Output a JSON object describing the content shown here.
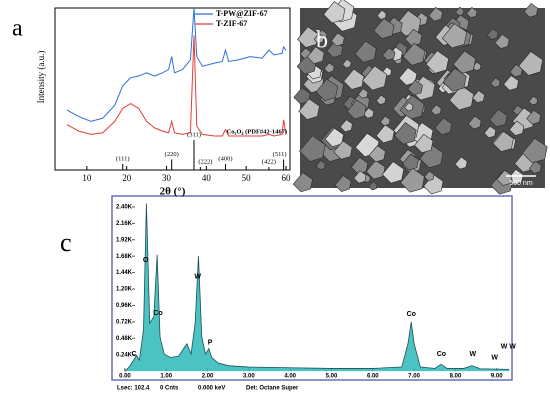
{
  "panel_labels": [
    "a",
    "b",
    "c"
  ],
  "image": {
    "scale_bar": "500 nm"
  },
  "chart_data": [
    {
      "type": "line",
      "x_label": "2θ (°)",
      "y_label": "Intensity (a.u.)",
      "x": [
        5,
        8,
        11,
        14,
        17,
        19,
        21,
        23,
        25,
        27,
        29,
        30.5,
        31.3,
        32,
        34,
        36,
        36.9,
        37.6,
        39,
        42,
        44,
        44.8,
        45.6,
        48,
        51,
        54,
        55.7,
        57,
        59,
        59.4,
        60
      ],
      "series": [
        {
          "name": "T-PW@ZIF-67",
          "color": "#2f6fd6",
          "values": [
            37,
            33,
            30,
            32,
            40,
            52,
            57,
            58,
            60,
            58,
            60,
            62,
            70,
            60,
            62,
            68,
            100,
            70,
            64,
            66,
            67,
            74,
            67,
            68,
            70,
            69,
            74,
            71,
            72,
            76,
            74
          ]
        },
        {
          "name": "T-ZIF-67",
          "color": "#e53b3b",
          "values": [
            28,
            24,
            22,
            23,
            30,
            38,
            41,
            38,
            30,
            26,
            24,
            23,
            30,
            23,
            22,
            23,
            83,
            27,
            22,
            21,
            21,
            25,
            21,
            21,
            21,
            21,
            22,
            21,
            22,
            31,
            22
          ]
        }
      ],
      "xlim": [
        2,
        61
      ],
      "ylim": [
        0,
        100
      ],
      "xticks": [
        10,
        20,
        30,
        40,
        50,
        60
      ],
      "legend": "upper right",
      "reference": {
        "label": "Co₃O₄ (PDF#42-1467)",
        "peaks": [
          {
            "label": "(111)",
            "position": 19.0,
            "intensity": 20
          },
          {
            "label": "(220)",
            "position": 31.3,
            "intensity": 35
          },
          {
            "label": "(311)",
            "position": 36.9,
            "intensity": 100
          },
          {
            "label": "(222)",
            "position": 38.5,
            "intensity": 10
          },
          {
            "label": "(400)",
            "position": 44.8,
            "intensity": 20
          },
          {
            "label": "(422)",
            "position": 55.7,
            "intensity": 10
          },
          {
            "label": "(511)",
            "position": 59.4,
            "intensity": 35
          }
        ]
      }
    },
    {
      "type": "area",
      "x": [
        0,
        0.1,
        0.2,
        0.28,
        0.35,
        0.45,
        0.52,
        0.6,
        0.7,
        0.78,
        0.85,
        0.95,
        1.1,
        1.3,
        1.5,
        1.6,
        1.7,
        1.78,
        1.86,
        1.95,
        2.03,
        2.1,
        2.25,
        2.5,
        3,
        4,
        5,
        6,
        6.7,
        6.85,
        6.93,
        7.0,
        7.15,
        7.5,
        7.65,
        7.8,
        8.2,
        8.4,
        8.6,
        9,
        9.3
      ],
      "values": [
        0,
        60,
        150,
        230,
        160,
        600,
        2450,
        700,
        800,
        1700,
        500,
        250,
        200,
        220,
        400,
        250,
        700,
        1680,
        500,
        250,
        330,
        200,
        120,
        80,
        60,
        50,
        40,
        40,
        60,
        400,
        720,
        400,
        60,
        40,
        100,
        40,
        40,
        80,
        35,
        30,
        25
      ],
      "color": "#2bb8b8",
      "xlim": [
        -0.24,
        9.32
      ],
      "ylim": [
        -100,
        2530
      ],
      "xticks": [
        {
          "value": 0,
          "label": "0.00"
        },
        {
          "value": 1,
          "label": "1.00"
        },
        {
          "value": 2,
          "label": "2.00"
        },
        {
          "value": 3,
          "label": "3.00"
        },
        {
          "value": 4,
          "label": "4.00"
        },
        {
          "value": 5,
          "label": "5.00"
        },
        {
          "value": 6,
          "label": "6.00"
        },
        {
          "value": 7,
          "label": "7.00"
        },
        {
          "value": 8,
          "label": "8.00"
        },
        {
          "value": 9,
          "label": "9.00"
        }
      ],
      "yticks": [
        {
          "value": 240,
          "label": "0.24K"
        },
        {
          "value": 480,
          "label": "0.48K"
        },
        {
          "value": 720,
          "label": "0.72K"
        },
        {
          "value": 960,
          "label": "0.96K"
        },
        {
          "value": 1200,
          "label": "1.20K"
        },
        {
          "value": 1440,
          "label": "1.44K"
        },
        {
          "value": 1680,
          "label": "1.68K"
        },
        {
          "value": 1920,
          "label": "1.92K"
        },
        {
          "value": 2160,
          "label": "2.16K"
        },
        {
          "value": 2400,
          "label": "2.40K"
        }
      ],
      "annotations": [
        {
          "text": "C",
          "x": 0.22,
          "y": 250
        },
        {
          "text": "O",
          "x": 0.5,
          "y": 1620
        },
        {
          "text": "Co",
          "x": 0.8,
          "y": 850
        },
        {
          "text": "W",
          "x": 1.76,
          "y": 1380
        },
        {
          "text": "P",
          "x": 2.06,
          "y": 420
        },
        {
          "text": "Co",
          "x": 6.93,
          "y": 830
        },
        {
          "text": "Co",
          "x": 7.66,
          "y": 250
        },
        {
          "text": "W",
          "x": 8.42,
          "y": 250
        },
        {
          "text": "W",
          "x": 8.95,
          "y": 200
        },
        {
          "text": "W W",
          "x": 9.28,
          "y": 360
        }
      ],
      "footer": [
        "Lsec: 102.4",
        "0 Cnts",
        "0.000 keV",
        "Det: Octane Super"
      ]
    }
  ]
}
